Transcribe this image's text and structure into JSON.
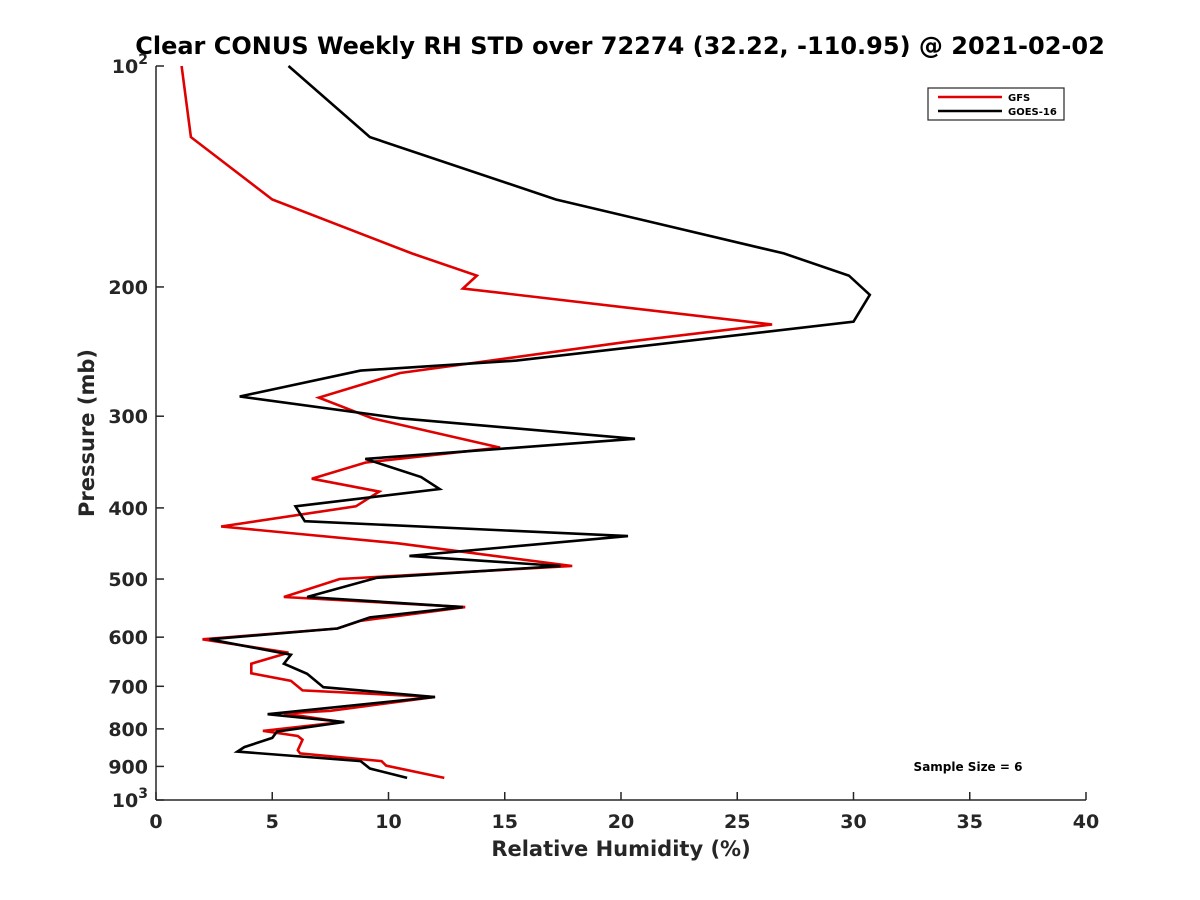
{
  "chart_data": {
    "type": "line",
    "title": "Clear CONUS Weekly RH STD over 72274 (32.22, -110.95) @ 2021-02-02",
    "xlabel": "Relative Humidity (%)",
    "ylabel": "Pressure (mb)",
    "xlim": [
      0,
      40
    ],
    "ylim": [
      100,
      1000
    ],
    "y_scale": "log",
    "y_reversed": true,
    "grid": false,
    "legend_position": "top-right",
    "x_ticks": [
      "0",
      "5",
      "10",
      "15",
      "20",
      "25",
      "30",
      "35",
      "40"
    ],
    "y_ticks": [
      {
        "value": 100,
        "base": "10",
        "exp": "2"
      },
      {
        "value": 200,
        "label": "200"
      },
      {
        "value": 300,
        "label": "300"
      },
      {
        "value": 400,
        "label": "400"
      },
      {
        "value": 500,
        "label": "500"
      },
      {
        "value": 600,
        "label": "600"
      },
      {
        "value": 700,
        "label": "700"
      },
      {
        "value": 800,
        "label": "800"
      },
      {
        "value": 900,
        "label": "900"
      },
      {
        "value": 1000,
        "base": "10",
        "exp": "3"
      }
    ],
    "annotation": "Sample Size = 6",
    "series": [
      {
        "name": "GFS",
        "color": "#e00000",
        "points": [
          [
            1.1,
            100
          ],
          [
            1.5,
            125
          ],
          [
            5.0,
            152
          ],
          [
            11.0,
            180
          ],
          [
            13.8,
            193
          ],
          [
            13.2,
            201
          ],
          [
            26.5,
            225
          ],
          [
            20.5,
            237
          ],
          [
            10.5,
            262
          ],
          [
            7.0,
            283
          ],
          [
            9.3,
            302
          ],
          [
            14.8,
            331
          ],
          [
            9.0,
            347
          ],
          [
            6.7,
            365
          ],
          [
            9.6,
            380
          ],
          [
            8.6,
            398
          ],
          [
            2.8,
            424
          ],
          [
            10.4,
            447
          ],
          [
            17.9,
            480
          ],
          [
            7.9,
            500
          ],
          [
            5.5,
            529
          ],
          [
            13.3,
            546
          ],
          [
            8.8,
            570
          ],
          [
            7.8,
            584
          ],
          [
            2.0,
            604
          ],
          [
            5.7,
            630
          ],
          [
            4.1,
            652
          ],
          [
            4.1,
            672
          ],
          [
            5.8,
            688
          ],
          [
            6.3,
            709
          ],
          [
            12.0,
            724
          ],
          [
            7.5,
            756
          ],
          [
            5.5,
            762
          ],
          [
            8.0,
            783
          ],
          [
            4.6,
            805
          ],
          [
            6.1,
            818
          ],
          [
            6.3,
            828
          ],
          [
            6.1,
            855
          ],
          [
            6.2,
            864
          ],
          [
            9.7,
            885
          ],
          [
            9.9,
            898
          ],
          [
            12.4,
            933
          ]
        ]
      },
      {
        "name": "GOES-16",
        "color": "#000000",
        "points": [
          [
            5.7,
            100
          ],
          [
            9.2,
            125
          ],
          [
            17.2,
            152
          ],
          [
            27.0,
            180
          ],
          [
            29.8,
            193
          ],
          [
            30.7,
            205
          ],
          [
            30.0,
            223
          ],
          [
            15.5,
            252
          ],
          [
            8.8,
            260
          ],
          [
            3.6,
            282
          ],
          [
            10.5,
            302
          ],
          [
            20.6,
            322
          ],
          [
            9.0,
            343
          ],
          [
            11.4,
            363
          ],
          [
            12.2,
            377
          ],
          [
            6.0,
            398
          ],
          [
            6.4,
            417
          ],
          [
            20.3,
            437
          ],
          [
            10.9,
            465
          ],
          [
            17.4,
            480
          ],
          [
            9.5,
            498
          ],
          [
            6.5,
            529
          ],
          [
            13.2,
            546
          ],
          [
            9.2,
            564
          ],
          [
            7.8,
            584
          ],
          [
            2.3,
            604
          ],
          [
            5.8,
            634
          ],
          [
            5.5,
            652
          ],
          [
            6.5,
            673
          ],
          [
            7.2,
            702
          ],
          [
            12.0,
            724
          ],
          [
            4.8,
            764
          ],
          [
            8.1,
            783
          ],
          [
            5.2,
            807
          ],
          [
            5.0,
            823
          ],
          [
            3.8,
            847
          ],
          [
            3.5,
            859
          ],
          [
            8.8,
            885
          ],
          [
            9.2,
            906
          ],
          [
            10.8,
            933
          ]
        ]
      }
    ]
  }
}
